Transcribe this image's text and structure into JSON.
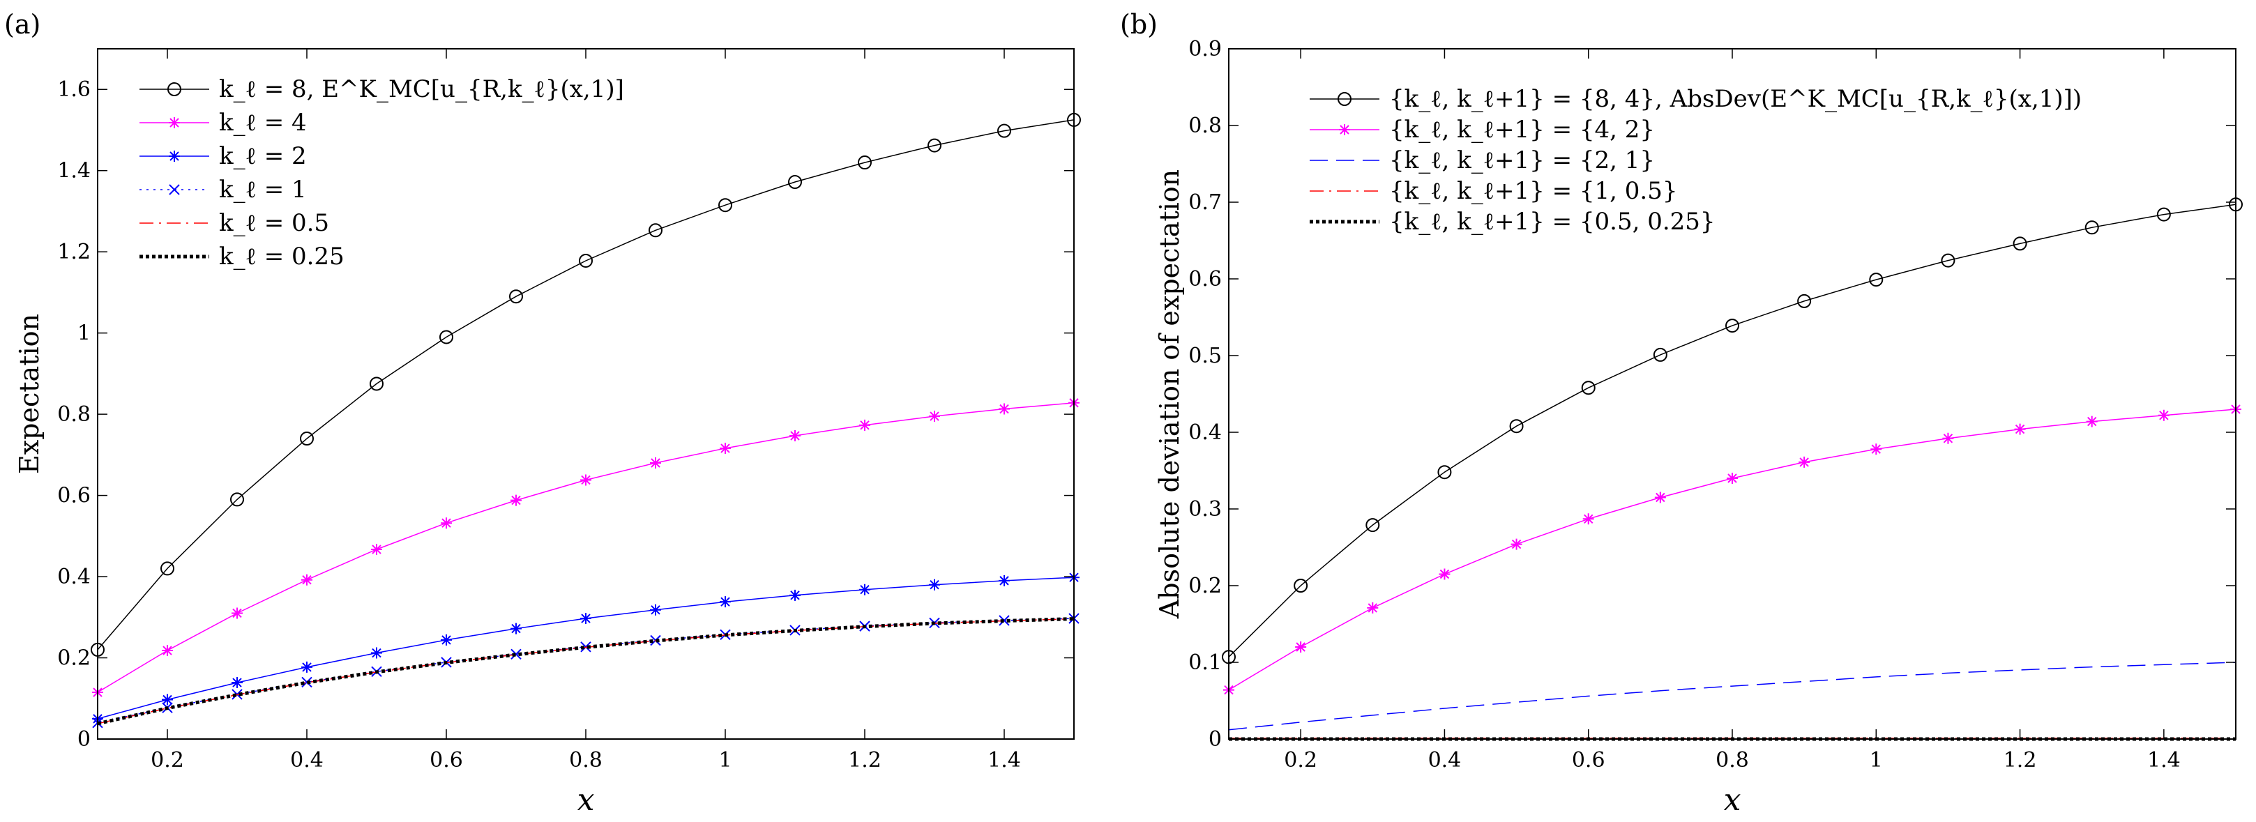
{
  "chart_data": [
    {
      "panel": "(a)",
      "type": "line",
      "xlabel": "x",
      "ylabel": "Expectation",
      "xlim": [
        0.1,
        1.5
      ],
      "ylim": [
        0,
        1.7
      ],
      "xticks": [
        0.2,
        0.4,
        0.6,
        0.8,
        1,
        1.2,
        1.4
      ],
      "yticks": [
        0,
        0.2,
        0.4,
        0.6,
        0.8,
        1,
        1.2,
        1.4,
        1.6
      ],
      "legend_position": "top-left",
      "x": [
        0.1,
        0.2,
        0.3,
        0.4,
        0.5,
        0.6,
        0.7,
        0.8,
        0.9,
        1.0,
        1.1,
        1.2,
        1.3,
        1.4,
        1.5
      ],
      "series": [
        {
          "name": "k_ℓ = 8,   E^K_MC[u_{R,k_ℓ}(x,1)]",
          "color": "#000000",
          "style": "solid",
          "marker": "circle",
          "width": 1.5,
          "values": [
            0.22,
            0.42,
            0.59,
            0.74,
            0.875,
            0.99,
            1.09,
            1.178,
            1.253,
            1.315,
            1.372,
            1.42,
            1.462,
            1.498,
            1.525
          ]
        },
        {
          "name": "k_ℓ = 4",
          "color": "#ff00ff",
          "style": "solid",
          "marker": "star",
          "width": 1.5,
          "values": [
            0.115,
            0.218,
            0.31,
            0.392,
            0.467,
            0.532,
            0.588,
            0.638,
            0.68,
            0.716,
            0.747,
            0.773,
            0.795,
            0.813,
            0.828
          ]
        },
        {
          "name": "k_ℓ = 2",
          "color": "#0000ff",
          "style": "solid",
          "marker": "star",
          "width": 1.5,
          "values": [
            0.05,
            0.097,
            0.139,
            0.177,
            0.212,
            0.244,
            0.272,
            0.297,
            0.318,
            0.338,
            0.354,
            0.368,
            0.38,
            0.39,
            0.398
          ]
        },
        {
          "name": "k_ℓ = 1",
          "color": "#0000ff",
          "style": "dotted",
          "marker": "x",
          "width": 1.5,
          "values": [
            0.04,
            0.077,
            0.11,
            0.14,
            0.166,
            0.189,
            0.209,
            0.227,
            0.243,
            0.257,
            0.268,
            0.278,
            0.286,
            0.292,
            0.297
          ]
        },
        {
          "name": "k_ℓ = 0.5",
          "color": "#ff0000",
          "style": "dashdot",
          "marker": "none",
          "width": 1.5,
          "values": [
            0.038,
            0.076,
            0.109,
            0.139,
            0.165,
            0.188,
            0.208,
            0.226,
            0.242,
            0.256,
            0.267,
            0.277,
            0.285,
            0.291,
            0.296
          ]
        },
        {
          "name": "k_ℓ = 0.25",
          "color": "#000000",
          "style": "dotted-thick",
          "marker": "none",
          "width": 5,
          "values": [
            0.038,
            0.076,
            0.109,
            0.139,
            0.165,
            0.188,
            0.208,
            0.226,
            0.242,
            0.256,
            0.267,
            0.277,
            0.285,
            0.291,
            0.296
          ]
        }
      ]
    },
    {
      "panel": "(b)",
      "type": "line",
      "xlabel": "x",
      "ylabel": "Absolute deviation of expectation",
      "xlim": [
        0.1,
        1.5
      ],
      "ylim": [
        0,
        0.9
      ],
      "xticks": [
        0.2,
        0.4,
        0.6,
        0.8,
        1,
        1.2,
        1.4
      ],
      "yticks": [
        0,
        0.1,
        0.2,
        0.3,
        0.4,
        0.5,
        0.6,
        0.7,
        0.8,
        0.9
      ],
      "legend_position": "top-left",
      "x": [
        0.1,
        0.2,
        0.3,
        0.4,
        0.5,
        0.6,
        0.7,
        0.8,
        0.9,
        1.0,
        1.1,
        1.2,
        1.3,
        1.4,
        1.5
      ],
      "series": [
        {
          "name": "{k_ℓ, k_ℓ+1} = {8, 4},   AbsDev(E^K_MC[u_{R,k_ℓ}(x,1)])",
          "color": "#000000",
          "style": "solid",
          "marker": "circle",
          "width": 1.5,
          "values": [
            0.107,
            0.2,
            0.279,
            0.348,
            0.408,
            0.458,
            0.501,
            0.539,
            0.571,
            0.599,
            0.624,
            0.646,
            0.667,
            0.684,
            0.697
          ]
        },
        {
          "name": "{k_ℓ, k_ℓ+1} = {4, 2}",
          "color": "#ff00ff",
          "style": "solid",
          "marker": "star",
          "width": 1.5,
          "values": [
            0.064,
            0.12,
            0.171,
            0.215,
            0.254,
            0.287,
            0.315,
            0.34,
            0.361,
            0.378,
            0.392,
            0.404,
            0.414,
            0.422,
            0.43
          ]
        },
        {
          "name": "{k_ℓ, k_ℓ+1} = {2, 1}",
          "color": "#0000ff",
          "style": "dashed",
          "marker": "none",
          "width": 1.5,
          "values": [
            0.012,
            0.022,
            0.031,
            0.04,
            0.048,
            0.056,
            0.063,
            0.069,
            0.075,
            0.081,
            0.086,
            0.09,
            0.094,
            0.097,
            0.1
          ]
        },
        {
          "name": "{k_ℓ, k_ℓ+1} = {1, 0.5}",
          "color": "#ff0000",
          "style": "dashdot",
          "marker": "none",
          "width": 1.5,
          "values": [
            0.001,
            0.001,
            0.001,
            0.001,
            0.001,
            0.001,
            0.001,
            0.001,
            0.001,
            0.001,
            0.001,
            0.001,
            0.001,
            0.001,
            0.001
          ]
        },
        {
          "name": "{k_ℓ, k_ℓ+1} = {0.5, 0.25}",
          "color": "#000000",
          "style": "dotted-thick",
          "marker": "none",
          "width": 5,
          "values": [
            0,
            0,
            0,
            0,
            0,
            0,
            0,
            0,
            0,
            0,
            0,
            0,
            0,
            0,
            0
          ]
        }
      ]
    }
  ]
}
